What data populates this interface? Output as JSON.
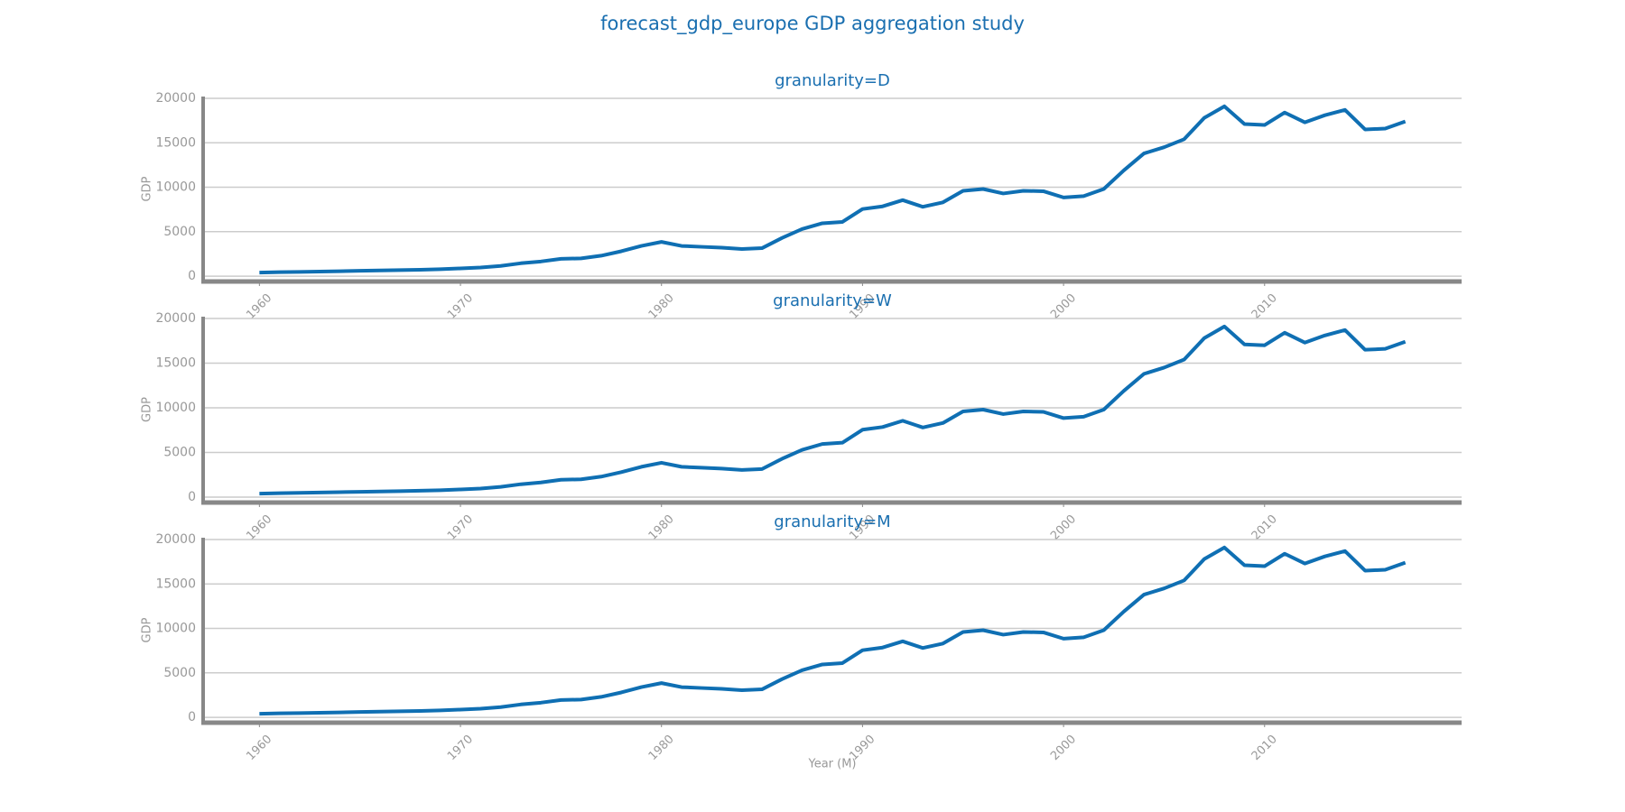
{
  "title": "forecast_gdp_europe GDP aggregation study",
  "chart_data": [
    {
      "type": "line",
      "title": "granularity=D",
      "ylabel": "GDP",
      "color": "#0f6fb3",
      "grid": true,
      "x": [
        1960,
        1961,
        1962,
        1963,
        1964,
        1965,
        1966,
        1967,
        1968,
        1969,
        1970,
        1971,
        1972,
        1973,
        1974,
        1975,
        1976,
        1977,
        1978,
        1979,
        1980,
        1981,
        1982,
        1983,
        1984,
        1985,
        1986,
        1987,
        1988,
        1989,
        1990,
        1991,
        1992,
        1993,
        1994,
        1995,
        1996,
        1997,
        1998,
        1999,
        2000,
        2001,
        2002,
        2003,
        2004,
        2005,
        2006,
        2007,
        2008,
        2009,
        2010,
        2011,
        2012,
        2013,
        2014,
        2015,
        2016,
        2017
      ],
      "values": [
        400,
        450,
        480,
        520,
        560,
        600,
        640,
        680,
        720,
        780,
        870,
        970,
        1150,
        1450,
        1650,
        1950,
        2000,
        2300,
        2800,
        3400,
        3850,
        3400,
        3300,
        3200,
        3050,
        3150,
        4300,
        5300,
        5950,
        6100,
        7550,
        7850,
        8550,
        7800,
        8300,
        9600,
        9800,
        9300,
        9600,
        9550,
        8850,
        9000,
        9800,
        11900,
        13800,
        14500,
        15400,
        17800,
        19100,
        17100,
        17000,
        18400,
        17300,
        18100,
        18700,
        16500,
        16600,
        17400
      ],
      "xlim": [
        1957.2,
        2019.8
      ],
      "xticks": [
        1960,
        1970,
        1980,
        1990,
        2000,
        2010
      ],
      "ylim": [
        -600,
        20200
      ],
      "yticks": [
        0,
        5000,
        10000,
        15000,
        20000
      ]
    },
    {
      "type": "line",
      "title": "granularity=W",
      "ylabel": "GDP",
      "color": "#0f6fb3",
      "grid": true,
      "x": [
        1960,
        1961,
        1962,
        1963,
        1964,
        1965,
        1966,
        1967,
        1968,
        1969,
        1970,
        1971,
        1972,
        1973,
        1974,
        1975,
        1976,
        1977,
        1978,
        1979,
        1980,
        1981,
        1982,
        1983,
        1984,
        1985,
        1986,
        1987,
        1988,
        1989,
        1990,
        1991,
        1992,
        1993,
        1994,
        1995,
        1996,
        1997,
        1998,
        1999,
        2000,
        2001,
        2002,
        2003,
        2004,
        2005,
        2006,
        2007,
        2008,
        2009,
        2010,
        2011,
        2012,
        2013,
        2014,
        2015,
        2016,
        2017
      ],
      "values": [
        400,
        450,
        480,
        520,
        560,
        600,
        640,
        680,
        720,
        780,
        870,
        970,
        1150,
        1450,
        1650,
        1950,
        2000,
        2300,
        2800,
        3400,
        3850,
        3400,
        3300,
        3200,
        3050,
        3150,
        4300,
        5300,
        5950,
        6100,
        7550,
        7850,
        8550,
        7800,
        8300,
        9600,
        9800,
        9300,
        9600,
        9550,
        8850,
        9000,
        9800,
        11900,
        13800,
        14500,
        15400,
        17800,
        19100,
        17100,
        17000,
        18400,
        17300,
        18100,
        18700,
        16500,
        16600,
        17400
      ],
      "xlim": [
        1957.2,
        2019.8
      ],
      "xticks": [
        1960,
        1970,
        1980,
        1990,
        2000,
        2010
      ],
      "ylim": [
        -600,
        20200
      ],
      "yticks": [
        0,
        5000,
        10000,
        15000,
        20000
      ]
    },
    {
      "type": "line",
      "title": "granularity=M",
      "ylabel": "GDP",
      "xlabel": "Year (M)",
      "color": "#0f6fb3",
      "grid": true,
      "x": [
        1960,
        1961,
        1962,
        1963,
        1964,
        1965,
        1966,
        1967,
        1968,
        1969,
        1970,
        1971,
        1972,
        1973,
        1974,
        1975,
        1976,
        1977,
        1978,
        1979,
        1980,
        1981,
        1982,
        1983,
        1984,
        1985,
        1986,
        1987,
        1988,
        1989,
        1990,
        1991,
        1992,
        1993,
        1994,
        1995,
        1996,
        1997,
        1998,
        1999,
        2000,
        2001,
        2002,
        2003,
        2004,
        2005,
        2006,
        2007,
        2008,
        2009,
        2010,
        2011,
        2012,
        2013,
        2014,
        2015,
        2016,
        2017
      ],
      "values": [
        400,
        450,
        480,
        520,
        560,
        600,
        640,
        680,
        720,
        780,
        870,
        970,
        1150,
        1450,
        1650,
        1950,
        2000,
        2300,
        2800,
        3400,
        3850,
        3400,
        3300,
        3200,
        3050,
        3150,
        4300,
        5300,
        5950,
        6100,
        7550,
        7850,
        8550,
        7800,
        8300,
        9600,
        9800,
        9300,
        9600,
        9550,
        8850,
        9000,
        9800,
        11900,
        13800,
        14500,
        15400,
        17800,
        19100,
        17100,
        17000,
        18400,
        17300,
        18100,
        18700,
        16500,
        16600,
        17400
      ],
      "xlim": [
        1957.2,
        2019.8
      ],
      "xticks": [
        1960,
        1970,
        1980,
        1990,
        2000,
        2010
      ],
      "ylim": [
        -600,
        20200
      ],
      "yticks": [
        0,
        5000,
        10000,
        15000,
        20000
      ]
    }
  ]
}
